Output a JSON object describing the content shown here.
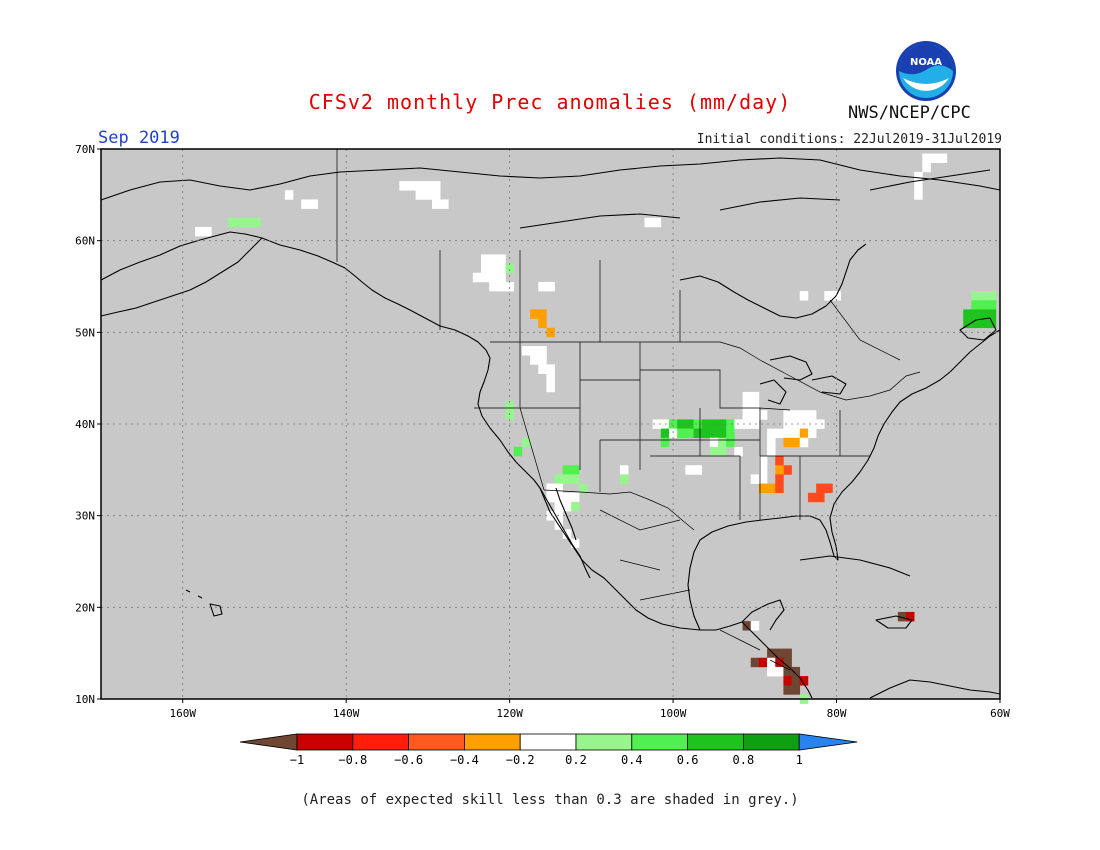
{
  "header": {
    "title": "CFSv2 monthly Prec anomalies (mm/day)",
    "month": "Sep 2019",
    "initial_conditions": "Initial conditions: 22Jul2019-31Jul2019",
    "agency": "NWS/NCEP/CPC",
    "logo_text": "NOAA"
  },
  "footer": {
    "note": "(Areas of expected skill less than 0.3 are shaded in grey.)"
  },
  "map": {
    "lon_range": [
      -170,
      -60
    ],
    "lat_range": [
      10,
      70
    ],
    "lat_ticks": [
      {
        "v": 70,
        "label": "70N"
      },
      {
        "v": 60,
        "label": "60N"
      },
      {
        "v": 50,
        "label": "50N"
      },
      {
        "v": 40,
        "label": "40N"
      },
      {
        "v": 30,
        "label": "30N"
      },
      {
        "v": 20,
        "label": "20N"
      },
      {
        "v": 10,
        "label": "10N"
      }
    ],
    "lon_ticks": [
      {
        "v": -160,
        "label": "160W"
      },
      {
        "v": -140,
        "label": "140W"
      },
      {
        "v": -120,
        "label": "120W"
      },
      {
        "v": -100,
        "label": "100W"
      },
      {
        "v": -80,
        "label": "80W"
      },
      {
        "v": -60,
        "label": "60W"
      }
    ],
    "background": "#c8c8c8",
    "grid": "dotted",
    "anomaly_cells": [
      {
        "lon": -147,
        "lat": 65,
        "c": "#ffffff"
      },
      {
        "lon": -145,
        "lat": 64,
        "c": "#ffffff"
      },
      {
        "lon": -144,
        "lat": 64,
        "c": "#ffffff"
      },
      {
        "lon": -133,
        "lat": 66,
        "c": "#ffffff"
      },
      {
        "lon": -132,
        "lat": 66,
        "c": "#ffffff"
      },
      {
        "lon": -131,
        "lat": 66,
        "c": "#ffffff"
      },
      {
        "lon": -130,
        "lat": 66,
        "c": "#ffffff"
      },
      {
        "lon": -129,
        "lat": 66,
        "c": "#ffffff"
      },
      {
        "lon": -131,
        "lat": 65,
        "c": "#ffffff"
      },
      {
        "lon": -130,
        "lat": 65,
        "c": "#ffffff"
      },
      {
        "lon": -129,
        "lat": 65,
        "c": "#ffffff"
      },
      {
        "lon": -129,
        "lat": 64,
        "c": "#ffffff"
      },
      {
        "lon": -128,
        "lat": 64,
        "c": "#ffffff"
      },
      {
        "lon": -158,
        "lat": 61,
        "c": "#ffffff"
      },
      {
        "lon": -157,
        "lat": 61,
        "c": "#ffffff"
      },
      {
        "lon": -154,
        "lat": 62,
        "c": "#96f58c"
      },
      {
        "lon": -153,
        "lat": 62,
        "c": "#96f58c"
      },
      {
        "lon": -152,
        "lat": 62,
        "c": "#96f58c"
      },
      {
        "lon": -151,
        "lat": 62,
        "c": "#96f58c"
      },
      {
        "lon": -103,
        "lat": 62,
        "c": "#ffffff"
      },
      {
        "lon": -102,
        "lat": 62,
        "c": "#ffffff"
      },
      {
        "lon": -69,
        "lat": 69,
        "c": "#ffffff"
      },
      {
        "lon": -68,
        "lat": 69,
        "c": "#ffffff"
      },
      {
        "lon": -67,
        "lat": 69,
        "c": "#ffffff"
      },
      {
        "lon": -69,
        "lat": 68,
        "c": "#ffffff"
      },
      {
        "lon": -70,
        "lat": 67,
        "c": "#ffffff"
      },
      {
        "lon": -70,
        "lat": 66,
        "c": "#ffffff"
      },
      {
        "lon": -70,
        "lat": 65,
        "c": "#ffffff"
      },
      {
        "lon": -123,
        "lat": 58,
        "c": "#ffffff"
      },
      {
        "lon": -122,
        "lat": 58,
        "c": "#ffffff"
      },
      {
        "lon": -121,
        "lat": 58,
        "c": "#ffffff"
      },
      {
        "lon": -123,
        "lat": 57,
        "c": "#ffffff"
      },
      {
        "lon": -122,
        "lat": 57,
        "c": "#ffffff"
      },
      {
        "lon": -121,
        "lat": 57,
        "c": "#ffffff"
      },
      {
        "lon": -120,
        "lat": 57,
        "c": "#96f58c"
      },
      {
        "lon": -124,
        "lat": 56,
        "c": "#ffffff"
      },
      {
        "lon": -123,
        "lat": 56,
        "c": "#ffffff"
      },
      {
        "lon": -122,
        "lat": 56,
        "c": "#ffffff"
      },
      {
        "lon": -121,
        "lat": 56,
        "c": "#ffffff"
      },
      {
        "lon": -122,
        "lat": 55,
        "c": "#ffffff"
      },
      {
        "lon": -121,
        "lat": 55,
        "c": "#ffffff"
      },
      {
        "lon": -120,
        "lat": 55,
        "c": "#ffffff"
      },
      {
        "lon": -116,
        "lat": 55,
        "c": "#ffffff"
      },
      {
        "lon": -115,
        "lat": 55,
        "c": "#ffffff"
      },
      {
        "lon": -117,
        "lat": 52,
        "c": "#ffa000"
      },
      {
        "lon": -116,
        "lat": 52,
        "c": "#ffa000"
      },
      {
        "lon": -116,
        "lat": 51,
        "c": "#ffa000"
      },
      {
        "lon": -115,
        "lat": 50,
        "c": "#ffa000"
      },
      {
        "lon": -84,
        "lat": 54,
        "c": "#ffffff"
      },
      {
        "lon": -81,
        "lat": 54,
        "c": "#ffffff"
      },
      {
        "lon": -80,
        "lat": 54,
        "c": "#ffffff"
      },
      {
        "lon": -63,
        "lat": 54,
        "c": "#96f58c"
      },
      {
        "lon": -62,
        "lat": 54,
        "c": "#96f58c"
      },
      {
        "lon": -61,
        "lat": 54,
        "c": "#96f58c"
      },
      {
        "lon": -63,
        "lat": 53,
        "c": "#50f050"
      },
      {
        "lon": -62,
        "lat": 53,
        "c": "#50f050"
      },
      {
        "lon": -61,
        "lat": 53,
        "c": "#50f050"
      },
      {
        "lon": -64,
        "lat": 52,
        "c": "#1ec31e"
      },
      {
        "lon": -63,
        "lat": 52,
        "c": "#1ec31e"
      },
      {
        "lon": -62,
        "lat": 52,
        "c": "#1ec31e"
      },
      {
        "lon": -61,
        "lat": 52,
        "c": "#1ec31e"
      },
      {
        "lon": -64,
        "lat": 51,
        "c": "#1ec31e"
      },
      {
        "lon": -63,
        "lat": 51,
        "c": "#1ec31e"
      },
      {
        "lon": -62,
        "lat": 51,
        "c": "#1ec31e"
      },
      {
        "lon": -61,
        "lat": 51,
        "c": "#1ec31e"
      },
      {
        "lon": -118,
        "lat": 48,
        "c": "#ffffff"
      },
      {
        "lon": -117,
        "lat": 48,
        "c": "#ffffff"
      },
      {
        "lon": -116,
        "lat": 48,
        "c": "#ffffff"
      },
      {
        "lon": -117,
        "lat": 47,
        "c": "#ffffff"
      },
      {
        "lon": -116,
        "lat": 47,
        "c": "#ffffff"
      },
      {
        "lon": -116,
        "lat": 46,
        "c": "#ffffff"
      },
      {
        "lon": -115,
        "lat": 46,
        "c": "#ffffff"
      },
      {
        "lon": -115,
        "lat": 45,
        "c": "#ffffff"
      },
      {
        "lon": -115,
        "lat": 44,
        "c": "#ffffff"
      },
      {
        "lon": -120,
        "lat": 42,
        "c": "#96f58c"
      },
      {
        "lon": -120,
        "lat": 41,
        "c": "#96f58c"
      },
      {
        "lon": -118,
        "lat": 38,
        "c": "#96f58c"
      },
      {
        "lon": -119,
        "lat": 37,
        "c": "#50f050"
      },
      {
        "lon": -113,
        "lat": 35,
        "c": "#50f050"
      },
      {
        "lon": -112,
        "lat": 35,
        "c": "#50f050"
      },
      {
        "lon": -114,
        "lat": 34,
        "c": "#96f58c"
      },
      {
        "lon": -113,
        "lat": 34,
        "c": "#96f58c"
      },
      {
        "lon": -112,
        "lat": 34,
        "c": "#96f58c"
      },
      {
        "lon": -111,
        "lat": 33,
        "c": "#96f58c"
      },
      {
        "lon": -106,
        "lat": 35,
        "c": "#ffffff"
      },
      {
        "lon": -106,
        "lat": 34,
        "c": "#96f58c"
      },
      {
        "lon": -115,
        "lat": 33,
        "c": "#ffffff"
      },
      {
        "lon": -114,
        "lat": 33,
        "c": "#ffffff"
      },
      {
        "lon": -115,
        "lat": 32,
        "c": "#ffffff"
      },
      {
        "lon": -114,
        "lat": 32,
        "c": "#ffffff"
      },
      {
        "lon": -113,
        "lat": 32,
        "c": "#ffffff"
      },
      {
        "lon": -112,
        "lat": 32,
        "c": "#ffffff"
      },
      {
        "lon": -112,
        "lat": 31,
        "c": "#96f58c"
      },
      {
        "lon": -114,
        "lat": 31,
        "c": "#ffffff"
      },
      {
        "lon": -113,
        "lat": 31,
        "c": "#ffffff"
      },
      {
        "lon": -115,
        "lat": 30,
        "c": "#ffffff"
      },
      {
        "lon": -114,
        "lat": 30,
        "c": "#ffffff"
      },
      {
        "lon": -114,
        "lat": 29,
        "c": "#ffffff"
      },
      {
        "lon": -113,
        "lat": 28,
        "c": "#ffffff"
      },
      {
        "lon": -112,
        "lat": 27,
        "c": "#ffffff"
      },
      {
        "lon": -102,
        "lat": 40,
        "c": "#ffffff"
      },
      {
        "lon": -101,
        "lat": 40,
        "c": "#ffffff"
      },
      {
        "lon": -100,
        "lat": 40,
        "c": "#50f050"
      },
      {
        "lon": -99,
        "lat": 40,
        "c": "#1ec31e"
      },
      {
        "lon": -98,
        "lat": 40,
        "c": "#1ec31e"
      },
      {
        "lon": -97,
        "lat": 40,
        "c": "#50f050"
      },
      {
        "lon": -96,
        "lat": 40,
        "c": "#1ec31e"
      },
      {
        "lon": -95,
        "lat": 40,
        "c": "#1ec31e"
      },
      {
        "lon": -94,
        "lat": 40,
        "c": "#1ec31e"
      },
      {
        "lon": -93,
        "lat": 40,
        "c": "#50f050"
      },
      {
        "lon": -92,
        "lat": 40,
        "c": "#ffffff"
      },
      {
        "lon": -91,
        "lat": 40,
        "c": "#ffffff"
      },
      {
        "lon": -90,
        "lat": 40,
        "c": "#ffffff"
      },
      {
        "lon": -101,
        "lat": 39,
        "c": "#1ec31e"
      },
      {
        "lon": -100,
        "lat": 39,
        "c": "#ffffff"
      },
      {
        "lon": -99,
        "lat": 39,
        "c": "#50f050"
      },
      {
        "lon": -98,
        "lat": 39,
        "c": "#50f050"
      },
      {
        "lon": -97,
        "lat": 39,
        "c": "#1ec31e"
      },
      {
        "lon": -96,
        "lat": 39,
        "c": "#1ec31e"
      },
      {
        "lon": -95,
        "lat": 39,
        "c": "#1ec31e"
      },
      {
        "lon": -94,
        "lat": 39,
        "c": "#1ec31e"
      },
      {
        "lon": -93,
        "lat": 39,
        "c": "#50f050"
      },
      {
        "lon": -101,
        "lat": 38,
        "c": "#50f050"
      },
      {
        "lon": -95,
        "lat": 38,
        "c": "#ffffff"
      },
      {
        "lon": -94,
        "lat": 38,
        "c": "#96f58c"
      },
      {
        "lon": -93,
        "lat": 38,
        "c": "#50f050"
      },
      {
        "lon": -95,
        "lat": 37,
        "c": "#96f58c"
      },
      {
        "lon": -94,
        "lat": 37,
        "c": "#96f58c"
      },
      {
        "lon": -92,
        "lat": 37,
        "c": "#ffffff"
      },
      {
        "lon": -91,
        "lat": 42,
        "c": "#ffffff"
      },
      {
        "lon": -90,
        "lat": 42,
        "c": "#ffffff"
      },
      {
        "lon": -91,
        "lat": 41,
        "c": "#ffffff"
      },
      {
        "lon": -90,
        "lat": 41,
        "c": "#ffffff"
      },
      {
        "lon": -89,
        "lat": 41,
        "c": "#ffffff"
      },
      {
        "lon": -91,
        "lat": 43,
        "c": "#ffffff"
      },
      {
        "lon": -90,
        "lat": 43,
        "c": "#ffffff"
      },
      {
        "lon": -98,
        "lat": 35,
        "c": "#ffffff"
      },
      {
        "lon": -97,
        "lat": 35,
        "c": "#ffffff"
      },
      {
        "lon": -86,
        "lat": 41,
        "c": "#ffffff"
      },
      {
        "lon": -85,
        "lat": 41,
        "c": "#ffffff"
      },
      {
        "lon": -84,
        "lat": 41,
        "c": "#ffffff"
      },
      {
        "lon": -83,
        "lat": 41,
        "c": "#ffffff"
      },
      {
        "lon": -86,
        "lat": 40,
        "c": "#ffffff"
      },
      {
        "lon": -85,
        "lat": 40,
        "c": "#ffffff"
      },
      {
        "lon": -84,
        "lat": 40,
        "c": "#ffffff"
      },
      {
        "lon": -83,
        "lat": 40,
        "c": "#ffffff"
      },
      {
        "lon": -82,
        "lat": 40,
        "c": "#ffffff"
      },
      {
        "lon": -88,
        "lat": 39,
        "c": "#ffffff"
      },
      {
        "lon": -87,
        "lat": 39,
        "c": "#ffffff"
      },
      {
        "lon": -86,
        "lat": 39,
        "c": "#ffffff"
      },
      {
        "lon": -85,
        "lat": 39,
        "c": "#ffffff"
      },
      {
        "lon": -84,
        "lat": 39,
        "c": "#ffa000"
      },
      {
        "lon": -83,
        "lat": 39,
        "c": "#ffffff"
      },
      {
        "lon": -86,
        "lat": 38,
        "c": "#ffa000"
      },
      {
        "lon": -85,
        "lat": 38,
        "c": "#ffa000"
      },
      {
        "lon": -84,
        "lat": 38,
        "c": "#ffffff"
      },
      {
        "lon": -88,
        "lat": 38,
        "c": "#ffffff"
      },
      {
        "lon": -88,
        "lat": 37,
        "c": "#ffffff"
      },
      {
        "lon": -87,
        "lat": 36,
        "c": "#ff4b1e"
      },
      {
        "lon": -86,
        "lat": 35,
        "c": "#ff4b1e"
      },
      {
        "lon": -87,
        "lat": 35,
        "c": "#ffa000"
      },
      {
        "lon": -89,
        "lat": 36,
        "c": "#ffffff"
      },
      {
        "lon": -89,
        "lat": 35,
        "c": "#ffffff"
      },
      {
        "lon": -90,
        "lat": 34,
        "c": "#ffffff"
      },
      {
        "lon": -89,
        "lat": 34,
        "c": "#ffffff"
      },
      {
        "lon": -89,
        "lat": 33,
        "c": "#ffa000"
      },
      {
        "lon": -88,
        "lat": 33,
        "c": "#ffa000"
      },
      {
        "lon": -87,
        "lat": 33,
        "c": "#ff4b1e"
      },
      {
        "lon": -87,
        "lat": 34,
        "c": "#ff4b1e"
      },
      {
        "lon": -82,
        "lat": 33,
        "c": "#ff4b1e"
      },
      {
        "lon": -81,
        "lat": 33,
        "c": "#ff4b1e"
      },
      {
        "lon": -83,
        "lat": 32,
        "c": "#ff4b1e"
      },
      {
        "lon": -82,
        "lat": 32,
        "c": "#ff4b1e"
      },
      {
        "lon": -91,
        "lat": 18,
        "c": "#6e4632"
      },
      {
        "lon": -90,
        "lat": 18,
        "c": "#ffffff"
      },
      {
        "lon": -88,
        "lat": 15,
        "c": "#6e4632"
      },
      {
        "lon": -87,
        "lat": 15,
        "c": "#6e4632"
      },
      {
        "lon": -86,
        "lat": 15,
        "c": "#6e4632"
      },
      {
        "lon": -90,
        "lat": 14,
        "c": "#6e4632"
      },
      {
        "lon": -89,
        "lat": 14,
        "c": "#c80000"
      },
      {
        "lon": -88,
        "lat": 14,
        "c": "#ffffff"
      },
      {
        "lon": -87,
        "lat": 14,
        "c": "#c80000"
      },
      {
        "lon": -86,
        "lat": 14,
        "c": "#6e4632"
      },
      {
        "lon": -88,
        "lat": 13,
        "c": "#ffffff"
      },
      {
        "lon": -87,
        "lat": 13,
        "c": "#ffffff"
      },
      {
        "lon": -86,
        "lat": 13,
        "c": "#6e4632"
      },
      {
        "lon": -85,
        "lat": 13,
        "c": "#6e4632"
      },
      {
        "lon": -86,
        "lat": 12,
        "c": "#c80000"
      },
      {
        "lon": -85,
        "lat": 12,
        "c": "#6e4632"
      },
      {
        "lon": -84,
        "lat": 12,
        "c": "#c80000"
      },
      {
        "lon": -86,
        "lat": 11,
        "c": "#6e4632"
      },
      {
        "lon": -85,
        "lat": 11,
        "c": "#6e4632"
      },
      {
        "lon": -84,
        "lat": 10,
        "c": "#96f58c"
      },
      {
        "lon": -72,
        "lat": 19,
        "c": "#6e4632"
      },
      {
        "lon": -71,
        "lat": 19,
        "c": "#c80000"
      }
    ]
  },
  "colorbar": {
    "labels": [
      "−1",
      "−0.8",
      "−0.6",
      "−0.4",
      "−0.2",
      "0.2",
      "0.4",
      "0.6",
      "0.8",
      "1"
    ],
    "colors": [
      "#c80000",
      "#ff1e0a",
      "#ff5a1e",
      "#ffa000",
      "#ffffff",
      "#96f58c",
      "#50f050",
      "#1ec31e",
      "#0fa00f"
    ],
    "low_arrow_color": "#6e4632",
    "high_arrow_color": "#2882f0"
  }
}
